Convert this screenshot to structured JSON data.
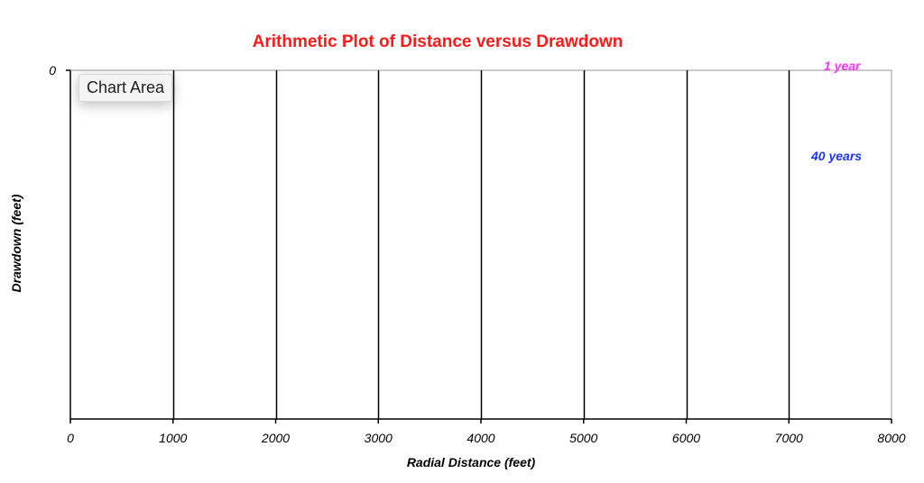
{
  "chart_data": {
    "type": "line",
    "title": "Arithmetic Plot of Distance versus Drawdown",
    "xlabel": "Radial Distance (feet)",
    "ylabel": "Drawdown (feet)",
    "xlim": [
      0,
      8000
    ],
    "x_ticks": [
      0,
      1000,
      2000,
      3000,
      4000,
      5000,
      6000,
      7000,
      8000
    ],
    "x_tick_labels": [
      "0",
      "1000",
      "2000",
      "3000",
      "4000",
      "5000",
      "6000",
      "7000",
      "8000"
    ],
    "y_tick_labels": [
      "0"
    ],
    "grid": "vertical",
    "legend_placement": "top-right",
    "series": [
      {
        "name": "1 year",
        "color": "#ff33ff",
        "values": []
      },
      {
        "name": "40 years",
        "color": "#1a33ff",
        "values": []
      }
    ]
  },
  "tooltip": {
    "text": "Chart Area"
  },
  "colors": {
    "title": "#ff1a1a",
    "axis": "#000000",
    "grid": "#000000"
  }
}
